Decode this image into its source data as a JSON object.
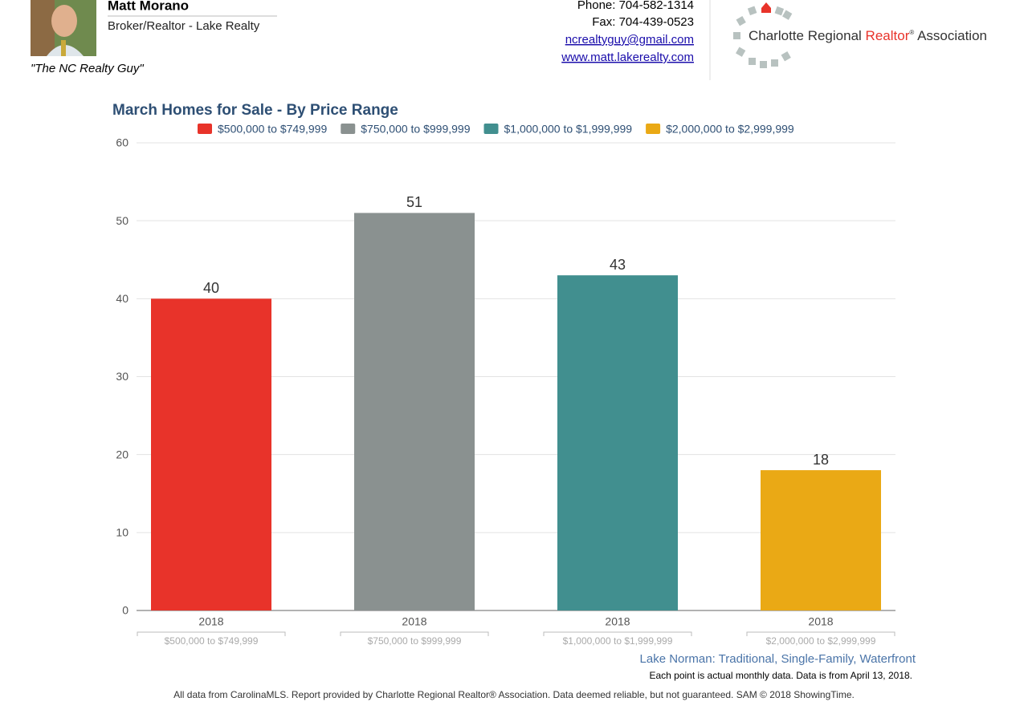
{
  "header": {
    "name": "Matt Morano",
    "role": "Broker/Realtor - Lake Realty",
    "tagline": "\"The NC Realty Guy\"",
    "phone": "Phone: 704-582-1314",
    "fax": "Fax: 704-439-0523",
    "email": "ncrealtyguy@gmail.com",
    "website": "www.matt.lakerealty.com",
    "logo": [
      "Charlotte Regional",
      "Realtor",
      "®",
      "Association"
    ]
  },
  "chart_data": {
    "type": "bar",
    "title": "March Homes for Sale - By Price Range",
    "categories": [
      "2018"
    ],
    "series": [
      {
        "name": "$500,000 to $749,999",
        "color": "#e8332a",
        "values": [
          40
        ]
      },
      {
        "name": "$750,000 to $999,999",
        "color": "#8a9190",
        "values": [
          51
        ]
      },
      {
        "name": "$1,000,000 to $1,999,999",
        "color": "#418f8f",
        "values": [
          43
        ]
      },
      {
        "name": "$2,000,000 to $2,999,999",
        "color": "#eaa915",
        "values": [
          18
        ]
      }
    ],
    "ylim": [
      0,
      60
    ],
    "yticks": [
      0,
      10,
      20,
      30,
      40,
      50,
      60
    ],
    "grid": true,
    "subtitle": "Lake Norman: Traditional, Single-Family, Waterfront",
    "note": "Each point is actual monthly data. Data is from April 13, 2018."
  },
  "footer": "All data from CarolinaMLS. Report provided by Charlotte Regional Realtor® Association. Data deemed reliable, but not guaranteed. SAM © 2018 ShowingTime."
}
